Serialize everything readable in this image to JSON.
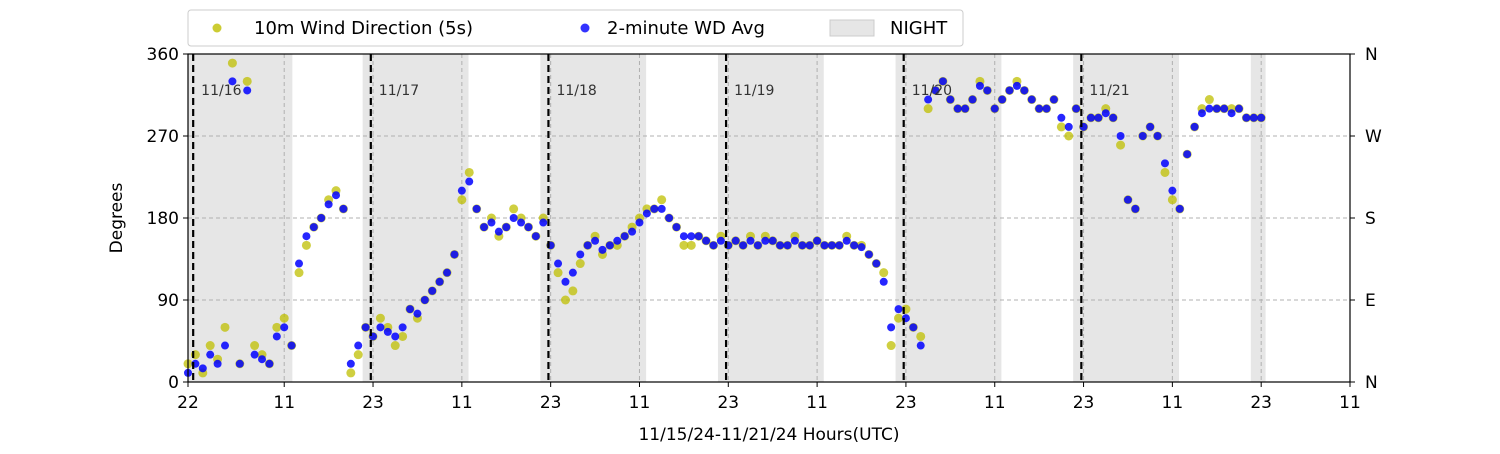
{
  "chart_data": {
    "type": "scatter",
    "xlabel": "11/15/24-11/21/24  Hours(UTC)",
    "ylabel": "Degrees",
    "x_unit": "hours since 22 UTC 11/15/24",
    "xlim": [
      0,
      157
    ],
    "ylim": [
      0,
      360
    ],
    "yticks": [
      0,
      90,
      180,
      270,
      360
    ],
    "y2_ticklabels": [
      "N",
      "E",
      "S",
      "W",
      "N"
    ],
    "xtick_positions": [
      0,
      13,
      25,
      37,
      49,
      61,
      73,
      85,
      97,
      109,
      121,
      133,
      145,
      157
    ],
    "xtick_labels": [
      "22",
      "11",
      "23",
      "11",
      "23",
      "11",
      "23",
      "11",
      "23",
      "11",
      "23",
      "11",
      "23",
      "11"
    ],
    "grid": "dashed horizontal at 90/180/270, dashed vertical at ticks",
    "legend_position": "top (above plot, outside)",
    "legend": [
      {
        "label": "10m Wind Direction (5s)",
        "marker": "dot",
        "color": "#bfbf00"
      },
      {
        "label": "2-minute WD Avg",
        "marker": "dot",
        "color": "#0000ff"
      },
      {
        "label": "NIGHT",
        "marker": "patch",
        "color": "#e6e6e6"
      }
    ],
    "night_periods": [
      [
        -0.5,
        14.1
      ],
      [
        23.6,
        37.9
      ],
      [
        47.6,
        61.9
      ],
      [
        71.6,
        85.9
      ],
      [
        95.6,
        109.9
      ],
      [
        119.6,
        133.9
      ],
      [
        143.6,
        145.6
      ]
    ],
    "day_lines": [
      {
        "x": 0.7,
        "label": "11/16"
      },
      {
        "x": 24.7,
        "label": "11/17"
      },
      {
        "x": 48.7,
        "label": "11/18"
      },
      {
        "x": 72.7,
        "label": "11/19"
      },
      {
        "x": 96.7,
        "label": "11/20"
      },
      {
        "x": 120.7,
        "label": "11/21"
      }
    ],
    "series": [
      {
        "name": "10m Wind Direction (5s)",
        "color": "#bfbf00",
        "x": [
          0,
          1,
          2,
          3,
          4,
          5,
          6,
          7,
          8,
          9,
          10,
          11,
          12,
          13,
          14,
          15,
          16,
          17,
          18,
          19,
          20,
          21,
          22,
          23,
          24,
          25,
          26,
          27,
          28,
          29,
          30,
          31,
          32,
          33,
          34,
          35,
          36,
          37,
          38,
          39,
          40,
          41,
          42,
          43,
          44,
          45,
          46,
          47,
          48,
          49,
          50,
          51,
          52,
          53,
          54,
          55,
          56,
          57,
          58,
          59,
          60,
          61,
          62,
          63,
          64,
          65,
          66,
          67,
          68,
          69,
          70,
          71,
          72,
          73,
          74,
          75,
          76,
          77,
          78,
          79,
          80,
          81,
          82,
          83,
          84,
          85,
          86,
          87,
          88,
          89,
          90,
          91,
          92,
          93,
          94,
          95,
          96,
          97,
          98,
          99,
          100,
          101,
          102,
          103,
          104,
          105,
          106,
          107,
          108,
          109,
          110,
          111,
          112,
          113,
          114,
          115,
          116,
          117,
          118,
          119,
          120,
          121,
          122,
          123,
          124,
          125,
          126,
          127,
          128,
          129,
          130,
          131,
          132,
          133,
          134,
          135,
          136,
          137,
          138,
          139,
          140,
          141,
          142,
          143,
          144,
          145
        ],
        "y": [
          20,
          30,
          10,
          40,
          25,
          60,
          350,
          20,
          330,
          40,
          30,
          20,
          60,
          70,
          40,
          120,
          150,
          170,
          180,
          200,
          210,
          190,
          10,
          30,
          60,
          50,
          70,
          60,
          40,
          50,
          80,
          70,
          90,
          100,
          110,
          120,
          140,
          200,
          230,
          190,
          170,
          180,
          160,
          170,
          190,
          180,
          170,
          160,
          180,
          150,
          120,
          90,
          100,
          130,
          150,
          160,
          140,
          150,
          150,
          160,
          170,
          180,
          190,
          190,
          200,
          180,
          170,
          150,
          150,
          160,
          155,
          150,
          160,
          150,
          155,
          150,
          160,
          150,
          160,
          155,
          150,
          150,
          160,
          150,
          150,
          155,
          150,
          150,
          150,
          160,
          150,
          150,
          140,
          130,
          120,
          40,
          70,
          80,
          60,
          50,
          300,
          320,
          330,
          310,
          300,
          300,
          310,
          330,
          320,
          300,
          310,
          320,
          330,
          320,
          310,
          300,
          300,
          310,
          280,
          270,
          300,
          280,
          290,
          290,
          300,
          290,
          260,
          200,
          190,
          270,
          280,
          270,
          230,
          200,
          190,
          250,
          280,
          300,
          310,
          300,
          300,
          300,
          300,
          290,
          290,
          290
        ]
      },
      {
        "name": "2-minute WD Avg",
        "color": "#0000ff",
        "x": [
          0,
          1,
          2,
          3,
          4,
          5,
          6,
          7,
          8,
          9,
          10,
          11,
          12,
          13,
          14,
          15,
          16,
          17,
          18,
          19,
          20,
          21,
          22,
          23,
          24,
          25,
          26,
          27,
          28,
          29,
          30,
          31,
          32,
          33,
          34,
          35,
          36,
          37,
          38,
          39,
          40,
          41,
          42,
          43,
          44,
          45,
          46,
          47,
          48,
          49,
          50,
          51,
          52,
          53,
          54,
          55,
          56,
          57,
          58,
          59,
          60,
          61,
          62,
          63,
          64,
          65,
          66,
          67,
          68,
          69,
          70,
          71,
          72,
          73,
          74,
          75,
          76,
          77,
          78,
          79,
          80,
          81,
          82,
          83,
          84,
          85,
          86,
          87,
          88,
          89,
          90,
          91,
          92,
          93,
          94,
          95,
          96,
          97,
          98,
          99,
          100,
          101,
          102,
          103,
          104,
          105,
          106,
          107,
          108,
          109,
          110,
          111,
          112,
          113,
          114,
          115,
          116,
          117,
          118,
          119,
          120,
          121,
          122,
          123,
          124,
          125,
          126,
          127,
          128,
          129,
          130,
          131,
          132,
          133,
          134,
          135,
          136,
          137,
          138,
          139,
          140,
          141,
          142,
          143,
          144,
          145
        ],
        "y": [
          10,
          20,
          15,
          30,
          20,
          40,
          330,
          20,
          320,
          30,
          25,
          20,
          50,
          60,
          40,
          130,
          160,
          170,
          180,
          195,
          205,
          190,
          20,
          40,
          60,
          50,
          60,
          55,
          50,
          60,
          80,
          75,
          90,
          100,
          110,
          120,
          140,
          210,
          220,
          190,
          170,
          175,
          165,
          170,
          180,
          175,
          170,
          160,
          175,
          150,
          130,
          110,
          120,
          140,
          150,
          155,
          145,
          150,
          155,
          160,
          165,
          175,
          185,
          190,
          190,
          180,
          170,
          160,
          160,
          160,
          155,
          150,
          155,
          150,
          155,
          150,
          155,
          150,
          155,
          155,
          150,
          150,
          155,
          150,
          150,
          155,
          150,
          150,
          150,
          155,
          150,
          148,
          140,
          130,
          110,
          60,
          80,
          70,
          60,
          40,
          310,
          320,
          330,
          310,
          300,
          300,
          310,
          325,
          320,
          300,
          310,
          320,
          325,
          320,
          310,
          300,
          300,
          310,
          290,
          280,
          300,
          280,
          290,
          290,
          295,
          290,
          270,
          200,
          190,
          270,
          280,
          270,
          240,
          210,
          190,
          250,
          280,
          295,
          300,
          300,
          300,
          295,
          300,
          290,
          290,
          290
        ]
      }
    ]
  }
}
